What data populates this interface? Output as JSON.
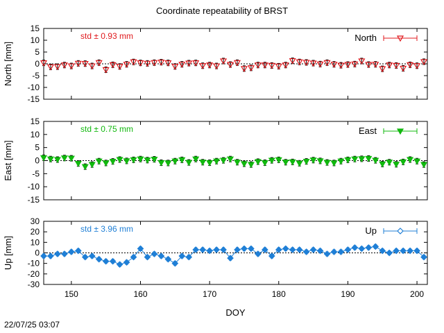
{
  "title": "Coordinate repeatability of BRST",
  "timestamp": "22/07/25 03:07",
  "chart_data": [
    {
      "type": "scatter",
      "panel": "north",
      "ylabel": "North [mm]",
      "ylim": [
        -15,
        15
      ],
      "yticks": [
        15,
        10,
        5,
        0,
        -5,
        -10,
        -15
      ],
      "xlim": [
        146,
        201.5
      ],
      "std_label": "std ± 0.93 mm",
      "legend": "North",
      "legend_position": "top-right",
      "color": "#e0181c",
      "marker": "triangle-down-open",
      "series": [
        {
          "name": "North",
          "x": [
            146,
            147,
            148,
            149,
            150,
            151,
            152,
            153,
            154,
            155,
            156,
            157,
            158,
            159,
            160,
            161,
            162,
            163,
            164,
            165,
            166,
            167,
            168,
            169,
            170,
            171,
            172,
            173,
            174,
            175,
            176,
            177,
            178,
            179,
            180,
            181,
            182,
            183,
            184,
            185,
            186,
            187,
            188,
            189,
            190,
            191,
            192,
            193,
            194,
            195,
            196,
            197,
            198,
            199,
            200,
            201
          ],
          "y": [
            0.4,
            -1.3,
            -1.2,
            -0.5,
            -0.9,
            0.2,
            0.1,
            -0.9,
            0.5,
            -2.5,
            -0.4,
            -1.1,
            -0.2,
            0.8,
            0.4,
            0.2,
            0.5,
            0.7,
            0.4,
            -1.1,
            -0.2,
            0.3,
            0.4,
            -0.8,
            -0.5,
            -0.9,
            1.2,
            -0.3,
            0.5,
            -2,
            -1.7,
            -0.5,
            -0.5,
            -0.7,
            -1,
            -0.5,
            1.3,
            0.8,
            0.6,
            0.3,
            -0.1,
            0.5,
            -0.2,
            -0.6,
            -0.3,
            -0.1,
            1.2,
            -0.3,
            -0.2,
            -2.1,
            -0.5,
            -0.7,
            -1.9,
            -0.4,
            -0.8,
            0.9
          ]
        }
      ]
    },
    {
      "type": "scatter",
      "panel": "east",
      "ylabel": "East [mm]",
      "ylim": [
        -15,
        15
      ],
      "yticks": [
        15,
        10,
        5,
        0,
        -5,
        -10,
        -15
      ],
      "xlim": [
        146,
        201.5
      ],
      "std_label": "std ± 0.75 mm",
      "legend": "East",
      "legend_position": "top-right",
      "color": "#11b80e",
      "marker": "triangle-down-filled",
      "series": [
        {
          "name": "East",
          "x": [
            146,
            147,
            148,
            149,
            150,
            151,
            152,
            153,
            154,
            155,
            156,
            157,
            158,
            159,
            160,
            161,
            162,
            163,
            164,
            165,
            166,
            167,
            168,
            169,
            170,
            171,
            172,
            173,
            174,
            175,
            176,
            177,
            178,
            179,
            180,
            181,
            182,
            183,
            184,
            185,
            186,
            187,
            188,
            189,
            190,
            191,
            192,
            193,
            194,
            195,
            196,
            197,
            198,
            199,
            200,
            201
          ],
          "y": [
            1.1,
            0.6,
            0.4,
            1,
            0.9,
            -1.1,
            -2.3,
            -1.5,
            -0.2,
            -0.9,
            -0.3,
            0.4,
            -0.1,
            0.3,
            0.6,
            0.2,
            0.5,
            -0.8,
            -0.9,
            -0.2,
            0.3,
            -0.7,
            0.6,
            -0.6,
            -0.8,
            -0.2,
            0.1,
            0.6,
            -0.6,
            -1.2,
            -1.5,
            -0.4,
            -0.8,
            0.1,
            0.3,
            -0.6,
            -0.5,
            -1,
            -0.3,
            0.2,
            -0.1,
            -0.7,
            -0.9,
            -0.2,
            0.3,
            0.6,
            0.7,
            0.8,
            0.1,
            -1.3,
            -0.6,
            -1.4,
            -0.5,
            0.4,
            -0.2,
            -1.5
          ]
        }
      ]
    },
    {
      "type": "scatter",
      "panel": "up",
      "ylabel": "Up [mm]",
      "ylim": [
        -30,
        30
      ],
      "yticks": [
        30,
        20,
        10,
        0,
        -10,
        -20,
        -30
      ],
      "xlim": [
        146,
        201.5
      ],
      "xlabel": "DOY",
      "xticks": [
        150,
        160,
        170,
        180,
        190,
        200
      ],
      "std_label": "std ± 3.96 mm",
      "legend": "Up",
      "legend_position": "top-right",
      "color": "#1f7fd6",
      "marker": "diamond-filled",
      "series": [
        {
          "name": "Up",
          "x": [
            146,
            147,
            148,
            149,
            150,
            151,
            152,
            153,
            154,
            155,
            156,
            157,
            158,
            159,
            160,
            161,
            162,
            163,
            164,
            165,
            166,
            167,
            168,
            169,
            170,
            171,
            172,
            173,
            174,
            175,
            176,
            177,
            178,
            179,
            180,
            181,
            182,
            183,
            184,
            185,
            186,
            187,
            188,
            189,
            190,
            191,
            192,
            193,
            194,
            195,
            196,
            197,
            198,
            199,
            200,
            201
          ],
          "y": [
            -3,
            -3,
            -1,
            -1,
            1,
            2,
            -4,
            -3,
            -6,
            -8,
            -8,
            -11,
            -9,
            -4,
            4,
            -4,
            -1,
            -3,
            -6,
            -10,
            -3,
            -4,
            3,
            3,
            2,
            3,
            3,
            -5,
            3,
            4,
            4,
            -1,
            3,
            -3,
            3,
            4,
            3,
            3,
            1,
            3,
            2,
            -1,
            1,
            1,
            3,
            5,
            4,
            5,
            6,
            2,
            0,
            2,
            2,
            2,
            2,
            -4
          ]
        }
      ]
    }
  ]
}
